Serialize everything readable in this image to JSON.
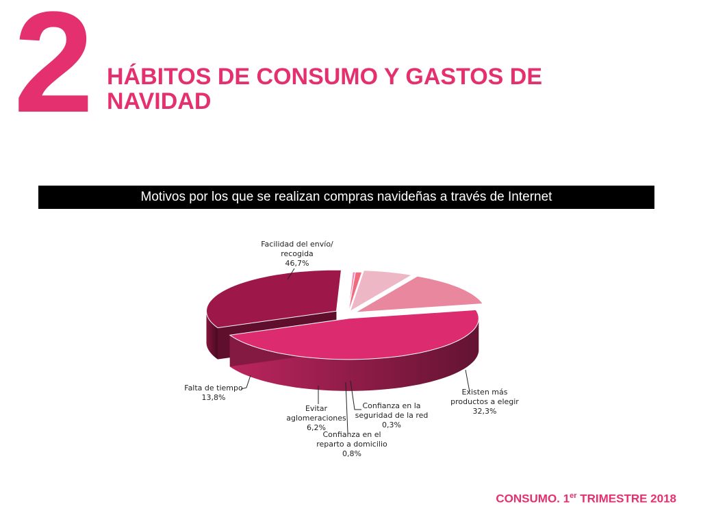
{
  "header": {
    "section_number": "2",
    "title": "HÁBITOS DE CONSUMO Y GASTOS DE NAVIDAD"
  },
  "banner": {
    "text": "Motivos por los que se realizan compras navideñas a través de Internet"
  },
  "footer": {
    "prefix": "CONSUMO. 1",
    "superscript": "er",
    "suffix": " TRIMESTRE 2018"
  },
  "colors": {
    "accent": "#e5306f",
    "banner_bg": "#000000"
  },
  "chart_data": {
    "type": "pie",
    "style": "3d-exploded",
    "title": "Motivos por los que se realizan compras navideñas a través de Internet",
    "slices": [
      {
        "label_lines": [
          "Facilidad del envío/",
          "recogida"
        ],
        "value": 46.7,
        "value_label": "46,7%",
        "color": "#dc2b6e"
      },
      {
        "label_lines": [
          "Existen más",
          "productos a elegir"
        ],
        "value": 32.3,
        "value_label": "32,3%",
        "color": "#9e1749"
      },
      {
        "label_lines": [
          "Confianza en la",
          "seguridad de la red"
        ],
        "value": 0.3,
        "value_label": "0,3%",
        "color": "#ff7fae"
      },
      {
        "label_lines": [
          "Confianza en el",
          "reparto a domicilio"
        ],
        "value": 0.8,
        "value_label": "0,8%",
        "color": "#f06b7e"
      },
      {
        "label_lines": [
          "Evitar",
          "aglomeraciones"
        ],
        "value": 6.2,
        "value_label": "6,2%",
        "color": "#edb7c5"
      },
      {
        "label_lines": [
          "Falta de tiempo"
        ],
        "value": 13.8,
        "value_label": "13,8%",
        "color": "#e8879d"
      }
    ]
  }
}
